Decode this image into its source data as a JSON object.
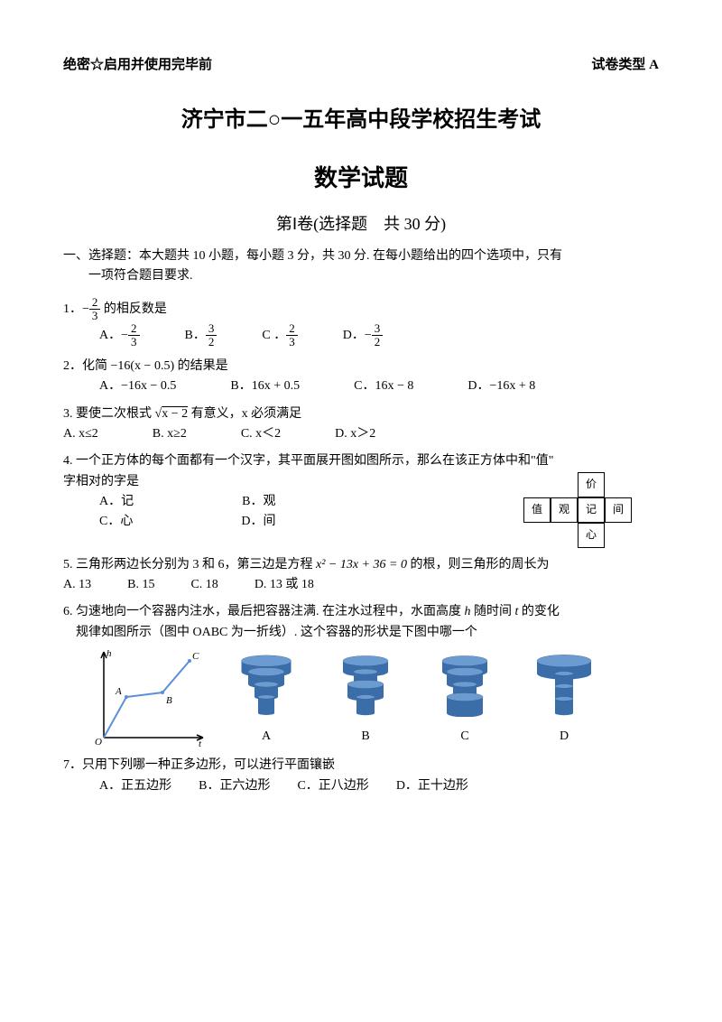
{
  "header": {
    "left": "绝密☆启用并使用完毕前",
    "right": "试卷类型 A"
  },
  "title_main": "济宁市二○一五年高中段学校招生考试",
  "title_sub": "数学试题",
  "section_title": "第Ⅰ卷(选择题　共 30 分)",
  "instructions_1": "一、选择题：本大题共 10 小题，每小题 3 分，共 30 分. 在每小题给出的四个选项中，只有",
  "instructions_2": "一项符合题目要求.",
  "q1": {
    "stem_pre": "1．",
    "stem_post": " 的相反数是",
    "frac_num": "2",
    "frac_den": "3",
    "optA_num": "2",
    "optA_den": "3",
    "optB_num": "3",
    "optB_den": "2",
    "optC_num": "2",
    "optC_den": "3",
    "optD_num": "3",
    "optD_den": "2",
    "labA": "A．",
    "labB": "B．",
    "labC": "C ．",
    "labD": "D．"
  },
  "q2": {
    "stem": "2．化简 −16(x − 0.5) 的结果是",
    "A": "A．−16x − 0.5",
    "B": "B．16x + 0.5",
    "C": "C．16x − 8",
    "D": "D．−16x + 8"
  },
  "q3": {
    "stem_pre": "3. 要使二次根式 ",
    "stem_expr": "x − 2",
    "stem_post": " 有意义，x 必须满足",
    "A": "A. x≤2",
    "B": "B. x≥2",
    "C": "C. x＜2",
    "D": "D. x＞2"
  },
  "q4": {
    "stem1": "4. 一个正方体的每个面都有一个汉字，其平面展开图如图所示，那么在该正方体中和\"值\"",
    "stem2": "字相对的字是",
    "A": "A．记",
    "B": "B．观",
    "C": "C．心",
    "D": "D．间",
    "net": {
      "top": "价",
      "r1": [
        "值",
        "观",
        "记",
        "间"
      ],
      "bottom": "心"
    }
  },
  "q5": {
    "stem_pre": "5. 三角形两边长分别为 3 和 6，第三边是方程 ",
    "stem_eq": "x² − 13x + 36 = 0",
    "stem_post": " 的根，则三角形的周长为",
    "A": "A. 13",
    "B": "B. 15",
    "C": "C. 18",
    "D": "D. 13 或 18"
  },
  "q6": {
    "stem1_pre": "6. 匀速地向一个容器内注水，最后把容器注满. 在注水过程中，水面高度 ",
    "h": "h",
    "mid": " 随时间 ",
    "t": "t",
    "stem1_post": " 的变化",
    "stem2": "规律如图所示（图中 OABC 为一折线）. 这个容器的形状是下图中哪一个",
    "graph": {
      "O": "O",
      "A": "A",
      "B": "B",
      "C": "C",
      "yaxis": "h",
      "xaxis": "t",
      "color": "#5b8fd9",
      "pts": {
        "O": [
          15,
          100
        ],
        "A": [
          40,
          55
        ],
        "B": [
          80,
          50
        ],
        "C": [
          110,
          15
        ]
      }
    },
    "containers": {
      "color": "#3b6ea8",
      "A": "A",
      "B": "B",
      "C": "C",
      "D": "D"
    }
  },
  "q7": {
    "stem": "7．只用下列哪一种正多边形，可以进行平面镶嵌",
    "A": "A．正五边形",
    "B": "B．正六边形",
    "C": "C．正八边形",
    "D": "D．正十边形"
  }
}
